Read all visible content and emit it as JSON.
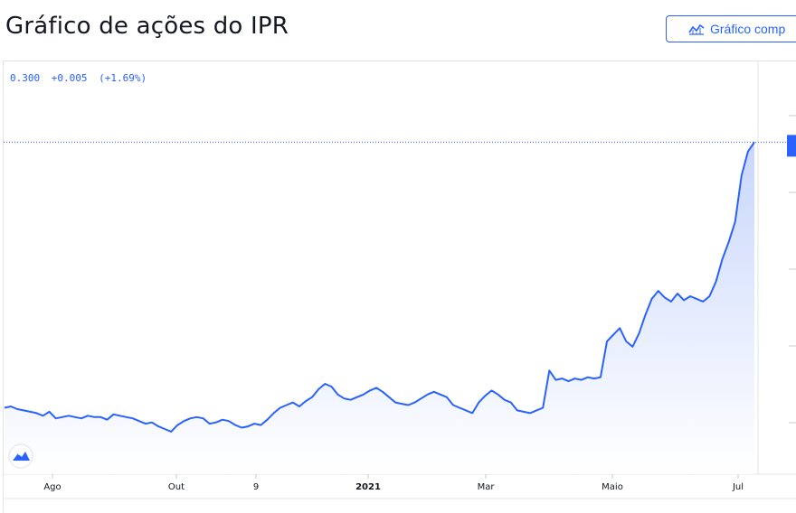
{
  "header": {
    "title": "Gráfico de ações do IPR",
    "full_chart_button": "Gráfico comp"
  },
  "legend": {
    "price": "0.300",
    "change": "+0.005",
    "change_pct": "(+1.69%)"
  },
  "colors": {
    "line": "#2962ff",
    "fill_top": "#c5d4fb",
    "fill_bottom": "#ffffff",
    "accent": "#2962ff",
    "axis_text": "#131722"
  },
  "icons": {
    "button_icon": "chart-icon",
    "brand_logo": "tradingview-logo-icon"
  },
  "chart_data": {
    "type": "area",
    "x_axis": {
      "tick_labels": [
        "Ago",
        "Out",
        "9",
        "2021",
        "Mar",
        "Maio",
        "Jul"
      ],
      "bold_ticks": [
        "2021"
      ]
    },
    "y_axis": {
      "range_hint": [
        0.05,
        0.32
      ],
      "last_price": 0.3
    },
    "grid": false,
    "x": [
      0,
      3,
      6,
      9,
      12,
      15,
      18,
      21,
      24,
      27,
      30,
      33,
      36,
      39,
      42,
      45,
      48,
      51,
      54,
      57,
      60,
      63,
      66,
      69,
      72,
      75,
      78,
      81,
      84,
      87,
      90,
      93,
      96,
      99,
      102,
      105,
      108,
      111,
      114,
      117,
      120,
      123,
      126,
      129,
      132,
      135,
      138,
      141,
      144,
      147,
      150,
      153,
      156,
      159,
      162,
      165,
      168,
      171,
      174,
      177,
      180,
      183,
      186,
      189,
      192,
      195,
      198,
      201,
      204,
      207,
      210,
      213,
      216,
      219,
      222,
      225,
      228,
      231,
      234,
      237,
      240,
      243,
      246,
      249,
      252,
      255,
      258,
      261,
      264,
      267,
      270,
      273,
      276,
      279,
      282,
      285,
      288,
      291,
      294,
      297,
      300,
      303,
      306,
      309,
      312,
      315,
      318,
      321,
      324,
      327,
      330,
      333,
      336,
      339,
      342,
      345,
      348,
      351
    ],
    "values": [
      0.1,
      0.101,
      0.099,
      0.098,
      0.097,
      0.096,
      0.094,
      0.097,
      0.092,
      0.093,
      0.094,
      0.093,
      0.092,
      0.094,
      0.093,
      0.093,
      0.091,
      0.095,
      0.094,
      0.093,
      0.092,
      0.09,
      0.088,
      0.089,
      0.086,
      0.084,
      0.082,
      0.087,
      0.09,
      0.092,
      0.093,
      0.092,
      0.088,
      0.089,
      0.091,
      0.09,
      0.087,
      0.085,
      0.086,
      0.088,
      0.087,
      0.091,
      0.096,
      0.1,
      0.102,
      0.104,
      0.101,
      0.105,
      0.108,
      0.114,
      0.118,
      0.116,
      0.11,
      0.107,
      0.106,
      0.108,
      0.11,
      0.113,
      0.115,
      0.112,
      0.108,
      0.104,
      0.103,
      0.102,
      0.104,
      0.107,
      0.11,
      0.112,
      0.11,
      0.108,
      0.102,
      0.1,
      0.098,
      0.096,
      0.104,
      0.109,
      0.113,
      0.11,
      0.106,
      0.104,
      0.098,
      0.097,
      0.096,
      0.098,
      0.1,
      0.128,
      0.121,
      0.122,
      0.12,
      0.122,
      0.121,
      0.123,
      0.122,
      0.123,
      0.15,
      0.155,
      0.16,
      0.15,
      0.146,
      0.156,
      0.17,
      0.182,
      0.188,
      0.183,
      0.18,
      0.186,
      0.181,
      0.184,
      0.182,
      0.18,
      0.184,
      0.195,
      0.212,
      0.225,
      0.24,
      0.275,
      0.293,
      0.3
    ]
  }
}
